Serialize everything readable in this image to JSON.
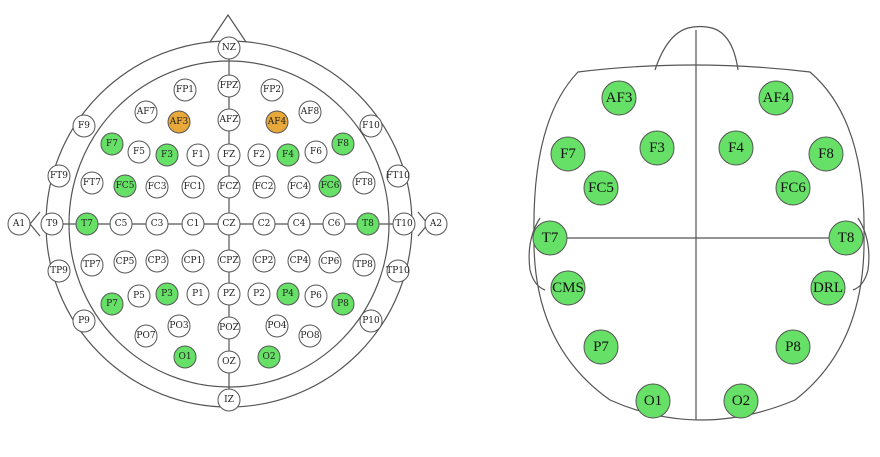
{
  "colors": {
    "active": "#66e066",
    "reference": "#e8a93a",
    "inactive": "#ffffff",
    "stroke": "#555555"
  },
  "left_map": {
    "electrodes": [
      {
        "label": "NZ",
        "state": "inactive"
      },
      {
        "label": "FP1",
        "state": "inactive"
      },
      {
        "label": "FPZ",
        "state": "inactive"
      },
      {
        "label": "FP2",
        "state": "inactive"
      },
      {
        "label": "AF7",
        "state": "inactive"
      },
      {
        "label": "AF3",
        "state": "reference"
      },
      {
        "label": "AFZ",
        "state": "inactive"
      },
      {
        "label": "AF4",
        "state": "reference"
      },
      {
        "label": "AF8",
        "state": "inactive"
      },
      {
        "label": "F9",
        "state": "inactive"
      },
      {
        "label": "F7",
        "state": "active"
      },
      {
        "label": "F5",
        "state": "inactive"
      },
      {
        "label": "F3",
        "state": "active"
      },
      {
        "label": "F1",
        "state": "inactive"
      },
      {
        "label": "FZ",
        "state": "inactive"
      },
      {
        "label": "F2",
        "state": "inactive"
      },
      {
        "label": "F4",
        "state": "active"
      },
      {
        "label": "F6",
        "state": "inactive"
      },
      {
        "label": "F8",
        "state": "active"
      },
      {
        "label": "F10",
        "state": "inactive"
      },
      {
        "label": "FT9",
        "state": "inactive"
      },
      {
        "label": "FT7",
        "state": "inactive"
      },
      {
        "label": "FC5",
        "state": "active"
      },
      {
        "label": "FC3",
        "state": "inactive"
      },
      {
        "label": "FC1",
        "state": "inactive"
      },
      {
        "label": "FCZ",
        "state": "inactive"
      },
      {
        "label": "FC2",
        "state": "inactive"
      },
      {
        "label": "FC4",
        "state": "inactive"
      },
      {
        "label": "FC6",
        "state": "active"
      },
      {
        "label": "FT8",
        "state": "inactive"
      },
      {
        "label": "FT10",
        "state": "inactive"
      },
      {
        "label": "A1",
        "state": "inactive"
      },
      {
        "label": "T9",
        "state": "inactive"
      },
      {
        "label": "T7",
        "state": "active"
      },
      {
        "label": "C5",
        "state": "inactive"
      },
      {
        "label": "C3",
        "state": "inactive"
      },
      {
        "label": "C1",
        "state": "inactive"
      },
      {
        "label": "CZ",
        "state": "inactive"
      },
      {
        "label": "C2",
        "state": "inactive"
      },
      {
        "label": "C4",
        "state": "inactive"
      },
      {
        "label": "C6",
        "state": "inactive"
      },
      {
        "label": "T8",
        "state": "active"
      },
      {
        "label": "T10",
        "state": "inactive"
      },
      {
        "label": "A2",
        "state": "inactive"
      },
      {
        "label": "TP9",
        "state": "inactive"
      },
      {
        "label": "TP7",
        "state": "inactive"
      },
      {
        "label": "CP5",
        "state": "inactive"
      },
      {
        "label": "CP3",
        "state": "inactive"
      },
      {
        "label": "CP1",
        "state": "inactive"
      },
      {
        "label": "CPZ",
        "state": "inactive"
      },
      {
        "label": "CP2",
        "state": "inactive"
      },
      {
        "label": "CP4",
        "state": "inactive"
      },
      {
        "label": "CP6",
        "state": "inactive"
      },
      {
        "label": "TP8",
        "state": "inactive"
      },
      {
        "label": "TP10",
        "state": "inactive"
      },
      {
        "label": "P9",
        "state": "inactive"
      },
      {
        "label": "P7",
        "state": "active"
      },
      {
        "label": "P5",
        "state": "inactive"
      },
      {
        "label": "P3",
        "state": "active"
      },
      {
        "label": "P1",
        "state": "inactive"
      },
      {
        "label": "PZ",
        "state": "inactive"
      },
      {
        "label": "P2",
        "state": "inactive"
      },
      {
        "label": "P4",
        "state": "active"
      },
      {
        "label": "P6",
        "state": "inactive"
      },
      {
        "label": "P8",
        "state": "active"
      },
      {
        "label": "P10",
        "state": "inactive"
      },
      {
        "label": "PO7",
        "state": "inactive"
      },
      {
        "label": "PO3",
        "state": "inactive"
      },
      {
        "label": "POZ",
        "state": "inactive"
      },
      {
        "label": "PO4",
        "state": "inactive"
      },
      {
        "label": "PO8",
        "state": "inactive"
      },
      {
        "label": "O1",
        "state": "active"
      },
      {
        "label": "OZ",
        "state": "inactive"
      },
      {
        "label": "O2",
        "state": "active"
      },
      {
        "label": "IZ",
        "state": "inactive"
      }
    ]
  },
  "right_map": {
    "electrodes": [
      {
        "label": "AF3",
        "state": "active"
      },
      {
        "label": "AF4",
        "state": "active"
      },
      {
        "label": "F7",
        "state": "active"
      },
      {
        "label": "F3",
        "state": "active"
      },
      {
        "label": "F4",
        "state": "active"
      },
      {
        "label": "F8",
        "state": "active"
      },
      {
        "label": "FC5",
        "state": "active"
      },
      {
        "label": "FC6",
        "state": "active"
      },
      {
        "label": "T7",
        "state": "active"
      },
      {
        "label": "T8",
        "state": "active"
      },
      {
        "label": "CMS",
        "state": "active"
      },
      {
        "label": "DRL",
        "state": "active"
      },
      {
        "label": "P7",
        "state": "active"
      },
      {
        "label": "P8",
        "state": "active"
      },
      {
        "label": "O1",
        "state": "active"
      },
      {
        "label": "O2",
        "state": "active"
      }
    ]
  }
}
